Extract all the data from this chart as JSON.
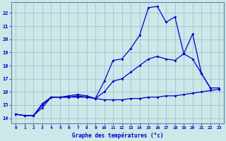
{
  "bg_color": "#cce8e8",
  "line_color": "#0000cc",
  "grid_color": "#99bbcc",
  "line1_x": [
    0,
    1,
    2,
    3,
    4,
    5,
    6,
    7,
    8,
    9,
    10,
    11,
    12,
    13,
    14,
    15,
    16,
    17,
    18,
    19,
    20,
    21,
    22,
    23
  ],
  "line1_y": [
    14.3,
    14.2,
    14.2,
    14.8,
    15.6,
    15.6,
    15.6,
    15.6,
    15.6,
    15.5,
    15.4,
    15.4,
    15.4,
    15.5,
    15.5,
    15.6,
    15.6,
    15.7,
    15.7,
    15.8,
    15.9,
    16.0,
    16.1,
    16.2
  ],
  "line2_x": [
    0,
    1,
    2,
    3,
    4,
    5,
    6,
    7,
    8,
    9,
    10,
    11,
    12,
    13,
    14,
    15,
    16,
    17,
    18,
    19,
    20,
    21,
    22,
    23
  ],
  "line2_y": [
    14.3,
    14.2,
    14.2,
    15.0,
    15.6,
    15.6,
    15.6,
    15.7,
    15.6,
    15.5,
    16.0,
    16.8,
    17.0,
    17.5,
    18.0,
    18.5,
    18.7,
    18.5,
    18.4,
    18.9,
    18.5,
    17.4,
    16.3,
    16.3
  ],
  "line3_x": [
    0,
    1,
    2,
    3,
    4,
    5,
    6,
    7,
    8,
    9,
    10,
    11,
    12,
    13,
    14,
    15,
    16,
    17,
    18,
    19,
    20,
    21,
    22
  ],
  "line3_y": [
    14.3,
    14.2,
    14.2,
    15.1,
    15.6,
    15.6,
    15.7,
    15.8,
    15.7,
    15.5,
    16.8,
    18.4,
    18.5,
    19.3,
    20.3,
    22.4,
    22.5,
    21.3,
    21.7,
    18.9,
    20.4,
    17.4,
    16.3
  ],
  "ylim": [
    13.6,
    22.8
  ],
  "xlim": [
    -0.5,
    23.5
  ],
  "yticks": [
    14,
    15,
    16,
    17,
    18,
    19,
    20,
    21,
    22
  ],
  "xticks": [
    0,
    1,
    2,
    3,
    4,
    5,
    6,
    7,
    8,
    9,
    10,
    11,
    12,
    13,
    14,
    15,
    16,
    17,
    18,
    19,
    20,
    21,
    22,
    23
  ],
  "xlabel": "Graphe des températures (°c)"
}
